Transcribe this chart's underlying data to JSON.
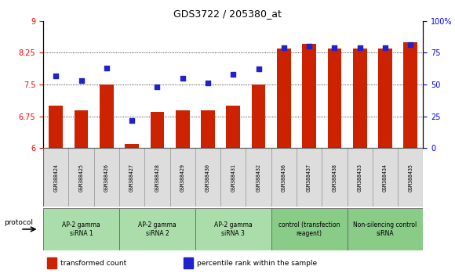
{
  "title": "GDS3722 / 205380_at",
  "samples": [
    "GSM388424",
    "GSM388425",
    "GSM388426",
    "GSM388427",
    "GSM388428",
    "GSM388429",
    "GSM388430",
    "GSM388431",
    "GSM388432",
    "GSM388436",
    "GSM388437",
    "GSM388438",
    "GSM388433",
    "GSM388434",
    "GSM388435"
  ],
  "bar_values": [
    7.0,
    6.9,
    7.5,
    6.1,
    6.85,
    6.9,
    6.9,
    7.0,
    7.5,
    8.35,
    8.45,
    8.35,
    8.35,
    8.35,
    8.5
  ],
  "dot_values": [
    57,
    53,
    63,
    22,
    48,
    55,
    51,
    58,
    62,
    79,
    80,
    79,
    79,
    79,
    81
  ],
  "ylim_left": [
    6,
    9
  ],
  "ylim_right": [
    0,
    100
  ],
  "yticks_left": [
    6,
    6.75,
    7.5,
    8.25,
    9
  ],
  "yticks_right": [
    0,
    25,
    50,
    75,
    100
  ],
  "bar_color": "#CC2200",
  "dot_color": "#2222CC",
  "groups": [
    {
      "label": "AP-2 gamma\nsiRNA 1",
      "start": 0,
      "end": 3,
      "color": "#AADDAA"
    },
    {
      "label": "AP-2 gamma\nsiRNA 2",
      "start": 3,
      "end": 6,
      "color": "#AADDAA"
    },
    {
      "label": "AP-2 gamma\nsiRNA 3",
      "start": 6,
      "end": 9,
      "color": "#AADDAA"
    },
    {
      "label": "control (transfection\nreagent)",
      "start": 9,
      "end": 12,
      "color": "#88CC88"
    },
    {
      "label": "Non-silencing control\nsiRNA",
      "start": 12,
      "end": 15,
      "color": "#88CC88"
    }
  ],
  "protocol_label": "protocol",
  "legend_bar_label": "transformed count",
  "legend_dot_label": "percentile rank within the sample",
  "sample_box_color": "#DDDDDD",
  "plot_bg_color": "#FFFFFF"
}
